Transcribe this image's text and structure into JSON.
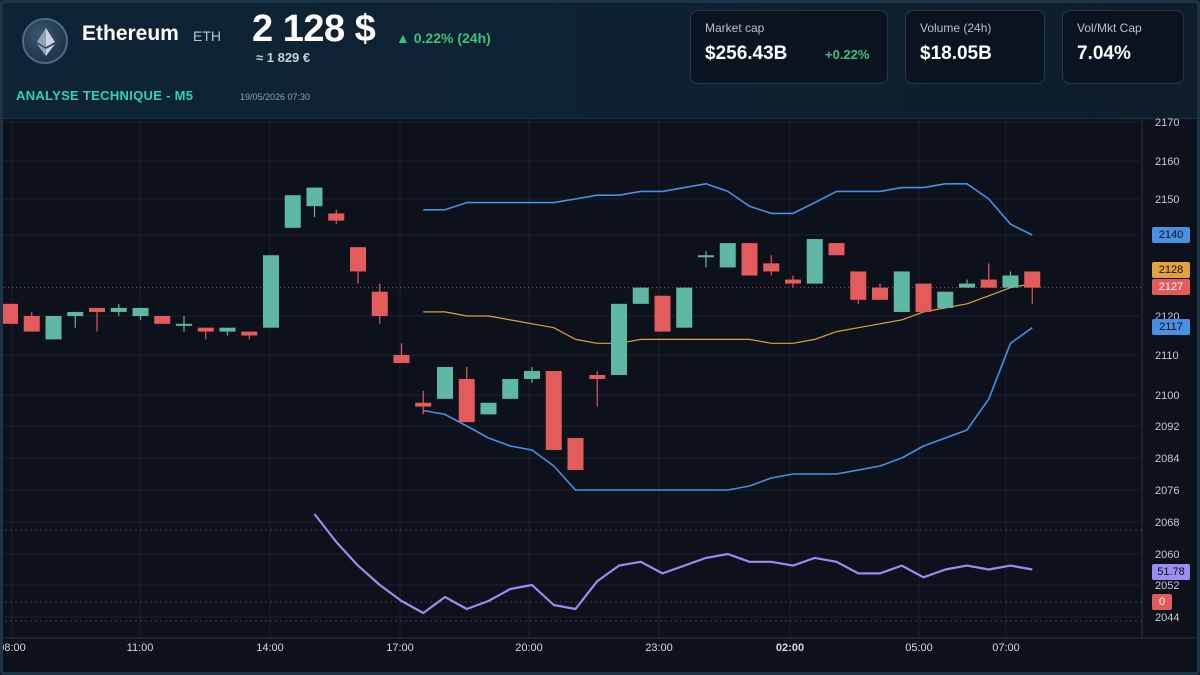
{
  "header": {
    "coin_name": "Ethereum",
    "ticker": "ETH",
    "price": "2 128 $",
    "change_24h": "▲ 0.22% (24h)",
    "price_eur": "≈ 1 829 €",
    "analysis_label": "ANALYSE TECHNIQUE - M5",
    "datetime": "19/05/2026 07:30",
    "icon": "ethereum-icon"
  },
  "stats": [
    {
      "label": "Market cap",
      "value": "$256.43B",
      "change": "+0.22%"
    },
    {
      "label": "Volume (24h)",
      "value": "$18.05B"
    },
    {
      "label": "Vol/Mkt Cap",
      "value": "7.04%"
    }
  ],
  "colors": {
    "up": "#5fb8a3",
    "down": "#e45b5b",
    "bollinger": "#4a90e2",
    "ma": "#e2a23a",
    "rsi": "#9b8cf0",
    "accent": "#2fd3b4"
  },
  "chart_data": {
    "type": "candlestick",
    "x_ticks": [
      "08:00",
      "11:00",
      "14:00",
      "17:00",
      "20:00",
      "23:00",
      "02:00",
      "05:00",
      "07:00"
    ],
    "y_ticks": [
      2170,
      2160,
      2150,
      2140,
      2120,
      2110,
      2100,
      2092,
      2084,
      2076,
      2068,
      2060,
      2052,
      2044
    ],
    "ylim": [
      2044,
      2170
    ],
    "price_tags": {
      "upper_band": "2140",
      "ma": "2128",
      "last": "2127",
      "lower_band": "2117",
      "rsi": "51.78",
      "zero": "0"
    },
    "candles": [
      {
        "t": 0.0,
        "o": 2123,
        "h": 2123,
        "c": 2118,
        "l": 2118
      },
      {
        "t": 1.0,
        "o": 2120,
        "h": 2121,
        "c": 2116,
        "l": 2116
      },
      {
        "t": 2.0,
        "o": 2114,
        "h": 2120,
        "c": 2120,
        "l": 2114
      },
      {
        "t": 3.0,
        "o": 2120,
        "h": 2121,
        "c": 2121,
        "l": 2117
      },
      {
        "t": 4.0,
        "o": 2122,
        "h": 2122,
        "c": 2121,
        "l": 2116
      },
      {
        "t": 5.0,
        "o": 2121,
        "h": 2123,
        "c": 2122,
        "l": 2120
      },
      {
        "t": 6.0,
        "o": 2120,
        "h": 2122,
        "c": 2122,
        "l": 2119
      },
      {
        "t": 7.0,
        "o": 2120,
        "h": 2120,
        "c": 2118,
        "l": 2118
      },
      {
        "t": 8.0,
        "o": 2118,
        "h": 2120,
        "c": 2118,
        "l": 2116
      },
      {
        "t": 9.0,
        "o": 2117,
        "h": 2117,
        "c": 2116,
        "l": 2114
      },
      {
        "t": 10.0,
        "o": 2116,
        "h": 2117,
        "c": 2117,
        "l": 2115
      },
      {
        "t": 11.0,
        "o": 2116,
        "h": 2116,
        "c": 2115,
        "l": 2114
      },
      {
        "t": 12.0,
        "o": 2117,
        "h": 2135,
        "c": 2135,
        "l": 2117
      },
      {
        "t": 13.0,
        "o": 2142,
        "h": 2151,
        "c": 2151,
        "l": 2142
      },
      {
        "t": 14.0,
        "o": 2148,
        "h": 2153,
        "c": 2153,
        "l": 2145
      },
      {
        "t": 15.0,
        "o": 2146,
        "h": 2147,
        "c": 2144,
        "l": 2143
      },
      {
        "t": 16.0,
        "o": 2137,
        "h": 2137,
        "c": 2131,
        "l": 2128
      },
      {
        "t": 17.0,
        "o": 2126,
        "h": 2128,
        "c": 2120,
        "l": 2118
      },
      {
        "t": 18.0,
        "o": 2110,
        "h": 2113,
        "c": 2108,
        "l": 2108
      },
      {
        "t": 19.0,
        "o": 2098,
        "h": 2101,
        "c": 2097,
        "l": 2095
      },
      {
        "t": 20.0,
        "o": 2099,
        "h": 2107,
        "c": 2107,
        "l": 2099
      },
      {
        "t": 21.0,
        "o": 2104,
        "h": 2107,
        "c": 2093,
        "l": 2093
      },
      {
        "t": 22.0,
        "o": 2095,
        "h": 2098,
        "c": 2098,
        "l": 2095
      },
      {
        "t": 23.0,
        "o": 2099,
        "h": 2104,
        "c": 2104,
        "l": 2099
      },
      {
        "t": 24.0,
        "o": 2104,
        "h": 2107,
        "c": 2106,
        "l": 2103
      },
      {
        "t": 25.0,
        "o": 2106,
        "h": 2106,
        "c": 2086,
        "l": 2086
      },
      {
        "t": 26.0,
        "o": 2089,
        "h": 2089,
        "c": 2081,
        "l": 2081
      },
      {
        "t": 27.0,
        "o": 2105,
        "h": 2106,
        "c": 2104,
        "l": 2097
      },
      {
        "t": 28.0,
        "o": 2105,
        "h": 2123,
        "c": 2123,
        "l": 2105
      },
      {
        "t": 29.0,
        "o": 2123,
        "h": 2127,
        "c": 2127,
        "l": 2123
      },
      {
        "t": 30.0,
        "o": 2125,
        "h": 2125,
        "c": 2116,
        "l": 2116
      },
      {
        "t": 31.0,
        "o": 2117,
        "h": 2127,
        "c": 2127,
        "l": 2117
      },
      {
        "t": 32.0,
        "o": 2135,
        "h": 2136,
        "c": 2135,
        "l": 2132
      },
      {
        "t": 33.0,
        "o": 2132,
        "h": 2138,
        "c": 2138,
        "l": 2132
      },
      {
        "t": 34.0,
        "o": 2138,
        "h": 2138,
        "c": 2130,
        "l": 2130
      },
      {
        "t": 35.0,
        "o": 2133,
        "h": 2135,
        "c": 2131,
        "l": 2130
      },
      {
        "t": 36.0,
        "o": 2129,
        "h": 2130,
        "c": 2128,
        "l": 2127
      },
      {
        "t": 37.0,
        "o": 2128,
        "h": 2139,
        "c": 2139,
        "l": 2128
      },
      {
        "t": 38.0,
        "o": 2138,
        "h": 2138,
        "c": 2135,
        "l": 2135
      },
      {
        "t": 39.0,
        "o": 2131,
        "h": 2131,
        "c": 2124,
        "l": 2123
      },
      {
        "t": 40.0,
        "o": 2127,
        "h": 2128,
        "c": 2124,
        "l": 2124
      },
      {
        "t": 41.0,
        "o": 2121,
        "h": 2131,
        "c": 2131,
        "l": 2121
      },
      {
        "t": 42.0,
        "o": 2128,
        "h": 2128,
        "c": 2121,
        "l": 2121
      },
      {
        "t": 43.0,
        "o": 2122,
        "h": 2126,
        "c": 2126,
        "l": 2122
      },
      {
        "t": 44.0,
        "o": 2127,
        "h": 2129,
        "c": 2128,
        "l": 2127
      },
      {
        "t": 45.0,
        "o": 2129,
        "h": 2133,
        "c": 2127,
        "l": 2127
      },
      {
        "t": 46.0,
        "o": 2127,
        "h": 2131,
        "c": 2130,
        "l": 2127
      },
      {
        "t": 47.0,
        "o": 2131,
        "h": 2131,
        "c": 2127,
        "l": 2123
      }
    ],
    "upper_band": [
      [
        19.0,
        2147
      ],
      [
        20.0,
        2147
      ],
      [
        21.0,
        2149
      ],
      [
        22.0,
        2149
      ],
      [
        23.0,
        2149
      ],
      [
        24.0,
        2149
      ],
      [
        25.0,
        2149
      ],
      [
        26.0,
        2150
      ],
      [
        27.0,
        2151
      ],
      [
        28.0,
        2151
      ],
      [
        29.0,
        2152
      ],
      [
        30.0,
        2152
      ],
      [
        31.0,
        2153
      ],
      [
        32.0,
        2154
      ],
      [
        33.0,
        2152
      ],
      [
        34.0,
        2148
      ],
      [
        35.0,
        2146
      ],
      [
        36.0,
        2146
      ],
      [
        37.0,
        2149
      ],
      [
        38.0,
        2152
      ],
      [
        39.0,
        2152
      ],
      [
        40.0,
        2152
      ],
      [
        41.0,
        2153
      ],
      [
        42.0,
        2153
      ],
      [
        43.0,
        2154
      ],
      [
        44.0,
        2154
      ],
      [
        45.0,
        2150
      ],
      [
        46.0,
        2143
      ],
      [
        47.0,
        2140
      ]
    ],
    "middle_band": [
      [
        19.0,
        2121
      ],
      [
        20.0,
        2121
      ],
      [
        21.0,
        2120
      ],
      [
        22.0,
        2120
      ],
      [
        23.0,
        2119
      ],
      [
        24.0,
        2118
      ],
      [
        25.0,
        2117
      ],
      [
        26.0,
        2114
      ],
      [
        27.0,
        2113
      ],
      [
        28.0,
        2113
      ],
      [
        29.0,
        2114
      ],
      [
        30.0,
        2114
      ],
      [
        31.0,
        2114
      ],
      [
        32.0,
        2114
      ],
      [
        33.0,
        2114
      ],
      [
        34.0,
        2114
      ],
      [
        35.0,
        2113
      ],
      [
        36.0,
        2113
      ],
      [
        37.0,
        2114
      ],
      [
        38.0,
        2116
      ],
      [
        39.0,
        2117
      ],
      [
        40.0,
        2118
      ],
      [
        41.0,
        2119
      ],
      [
        42.0,
        2121
      ],
      [
        43.0,
        2122
      ],
      [
        44.0,
        2123
      ],
      [
        45.0,
        2125
      ],
      [
        46.0,
        2127
      ],
      [
        47.0,
        2128
      ]
    ],
    "lower_band": [
      [
        19.0,
        2096
      ],
      [
        20.0,
        2095
      ],
      [
        21.0,
        2092
      ],
      [
        22.0,
        2089
      ],
      [
        23.0,
        2087
      ],
      [
        24.0,
        2086
      ],
      [
        25.0,
        2082
      ],
      [
        26.0,
        2076
      ],
      [
        27.0,
        2076
      ],
      [
        28.0,
        2076
      ],
      [
        29.0,
        2076
      ],
      [
        30.0,
        2076
      ],
      [
        31.0,
        2076
      ],
      [
        32.0,
        2076
      ],
      [
        33.0,
        2076
      ],
      [
        34.0,
        2077
      ],
      [
        35.0,
        2079
      ],
      [
        36.0,
        2080
      ],
      [
        37.0,
        2080
      ],
      [
        38.0,
        2080
      ],
      [
        39.0,
        2081
      ],
      [
        40.0,
        2082
      ],
      [
        41.0,
        2084
      ],
      [
        42.0,
        2087
      ],
      [
        43.0,
        2089
      ],
      [
        44.0,
        2091
      ],
      [
        45.0,
        2099
      ],
      [
        46.0,
        2113
      ],
      [
        47.0,
        2117
      ]
    ],
    "rsi": [
      [
        14.0,
        2070
      ],
      [
        15.0,
        2063
      ],
      [
        16.0,
        2057
      ],
      [
        17.0,
        2052
      ],
      [
        18.0,
        2048
      ],
      [
        19.0,
        2045
      ],
      [
        20.0,
        2049
      ],
      [
        21.0,
        2046
      ],
      [
        22.0,
        2048
      ],
      [
        23.0,
        2051
      ],
      [
        24.0,
        2052
      ],
      [
        25.0,
        2047
      ],
      [
        26.0,
        2046
      ],
      [
        27.0,
        2053
      ],
      [
        28.0,
        2057
      ],
      [
        29.0,
        2058
      ],
      [
        30.0,
        2055
      ],
      [
        31.0,
        2057
      ],
      [
        32.0,
        2059
      ],
      [
        33.0,
        2060
      ],
      [
        34.0,
        2058
      ],
      [
        35.0,
        2058
      ],
      [
        36.0,
        2057
      ],
      [
        37.0,
        2059
      ],
      [
        38.0,
        2058
      ],
      [
        39.0,
        2055
      ],
      [
        40.0,
        2055
      ],
      [
        41.0,
        2057
      ],
      [
        42.0,
        2054
      ],
      [
        43.0,
        2056
      ],
      [
        44.0,
        2057
      ],
      [
        45.0,
        2056
      ],
      [
        46.0,
        2057
      ],
      [
        47.0,
        2056
      ]
    ]
  }
}
